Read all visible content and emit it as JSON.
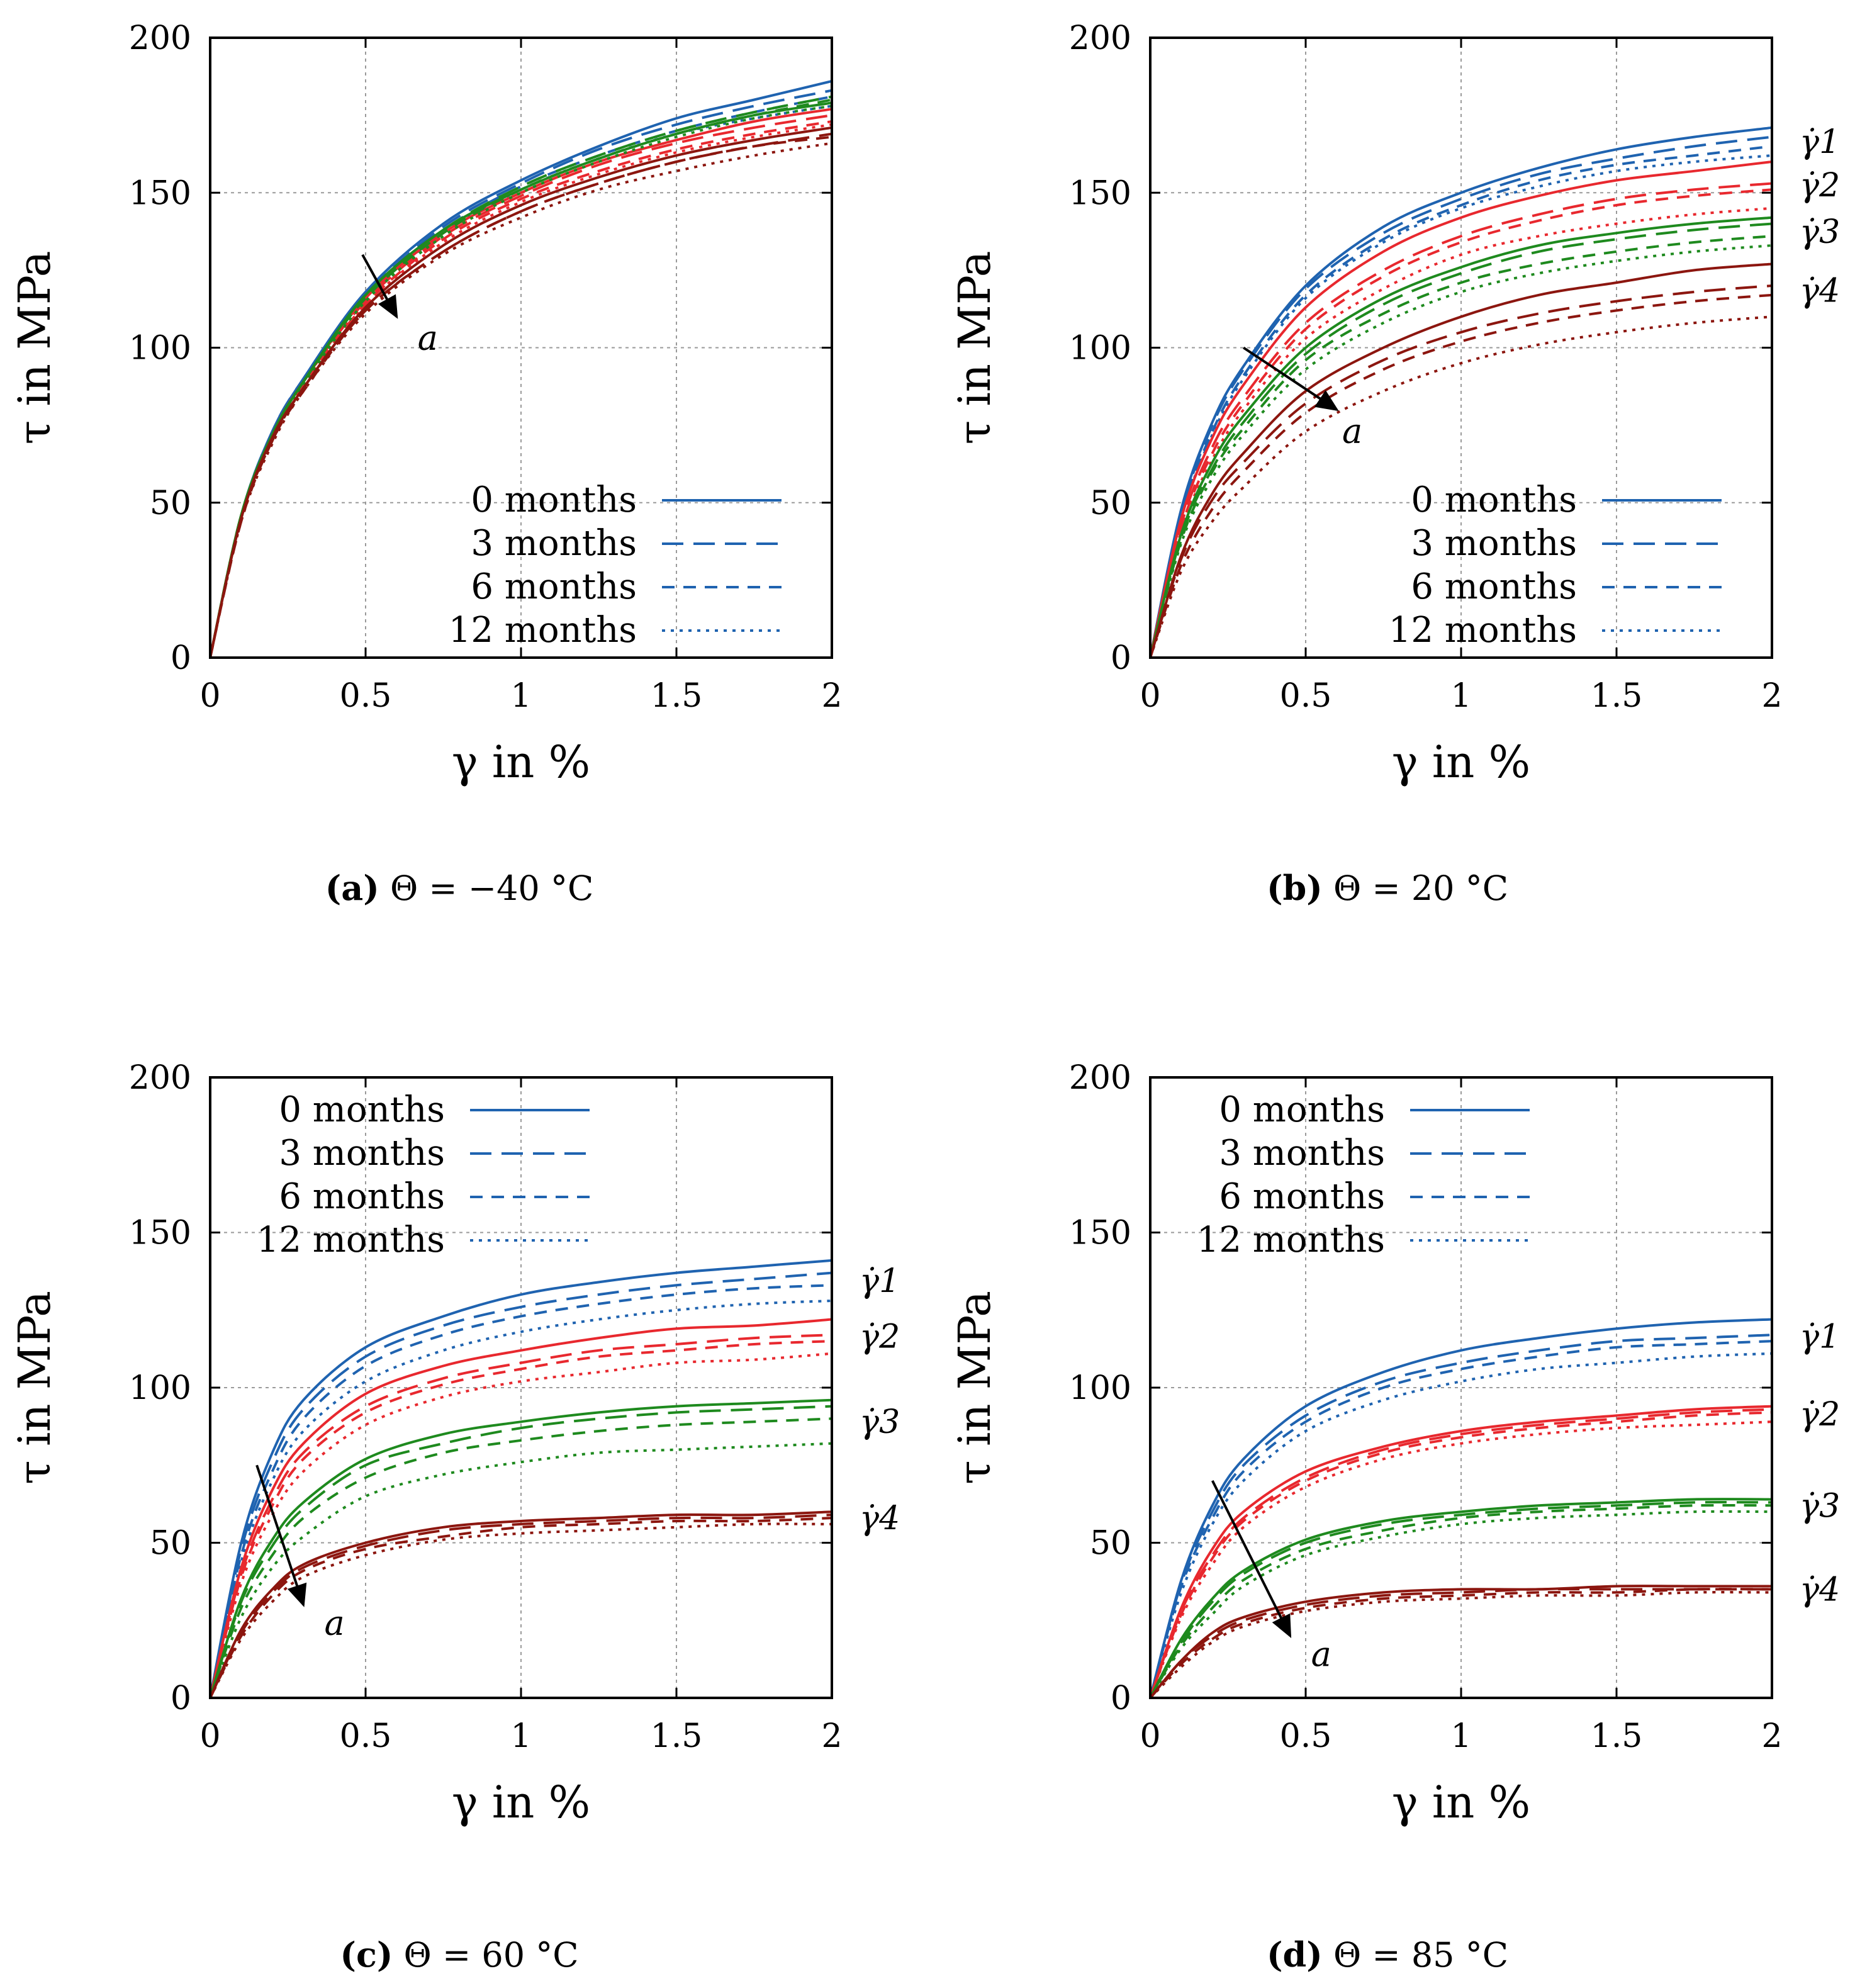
{
  "figure": {
    "colors": {
      "rate_1": "#1f63b0",
      "rate_2": "#e8282e",
      "rate_3": "#1e8a1e",
      "rate_4": "#8c160f"
    },
    "line_styles": {
      "0 months": "solid",
      "3 months": "long-dash",
      "6 months": "dash",
      "12 months": "dot"
    }
  },
  "chart_data": [
    {
      "type": "line",
      "id": "a",
      "caption_letter": "(a)",
      "caption_text": " Θ = −40 °C",
      "xlabel": "γ in %",
      "ylabel": "τ in MPa",
      "xlim": [
        0,
        2
      ],
      "ylim": [
        0,
        200
      ],
      "xticks": [
        "0",
        "0.5",
        "1",
        "1.5",
        "2"
      ],
      "yticks": [
        "0",
        "50",
        "100",
        "150",
        "200"
      ],
      "grid": true,
      "legend_position": "bottom-right",
      "legend": [
        "0 months",
        "3 months",
        "6 months",
        "12 months"
      ],
      "annotation": "a",
      "rate_labels": [],
      "x": [
        0,
        0.1,
        0.2,
        0.3,
        0.5,
        0.75,
        1.0,
        1.25,
        1.5,
        1.75,
        2.0
      ],
      "series": [
        {
          "rate": 1,
          "ages": [
            [
              0,
              46,
              73,
              90,
              118,
              140,
              154,
              165,
              174,
              180,
              186
            ],
            [
              0,
              46,
              73,
              90,
              117,
              139,
              153,
              164,
              172,
              178,
              183
            ],
            [
              0,
              46,
              72,
              89,
              117,
              138,
              152,
              162,
              170,
              176,
              181
            ],
            [
              0,
              45,
              72,
              89,
              116,
              137,
              151,
              161,
              169,
              174,
              178
            ]
          ]
        },
        {
          "rate": 2,
          "ages": [
            [
              0,
              46,
              72,
              89,
              116,
              137,
              150,
              160,
              167,
              173,
              177
            ],
            [
              0,
              46,
              72,
              89,
              115,
              136,
              149,
              159,
              166,
              171,
              175
            ],
            [
              0,
              45,
              71,
              88,
              114,
              135,
              148,
              157,
              164,
              169,
              173
            ],
            [
              0,
              45,
              71,
              88,
              114,
              134,
              147,
              156,
              163,
              168,
              172
            ]
          ]
        },
        {
          "rate": 3,
          "ages": [
            [
              0,
              46,
              72,
              89,
              117,
              138,
              151,
              161,
              169,
              175,
              179
            ],
            [
              0,
              46,
              72,
              89,
              117,
              138,
              152,
              162,
              170,
              176,
              181
            ],
            [
              0,
              46,
              72,
              89,
              116,
              137,
              151,
              161,
              169,
              175,
              180
            ],
            [
              0,
              45,
              71,
              88,
              115,
              136,
              150,
              160,
              168,
              174,
              178
            ]
          ]
        },
        {
          "rate": 4,
          "ages": [
            [
              0,
              45,
              71,
              87,
              113,
              133,
              146,
              155,
              162,
              167,
              171
            ],
            [
              0,
              45,
              70,
              87,
              112,
              131,
              144,
              153,
              160,
              165,
              169
            ],
            [
              0,
              44,
              70,
              86,
              112,
              131,
              144,
              153,
              160,
              165,
              168
            ],
            [
              0,
              44,
              69,
              86,
              111,
              130,
              142,
              151,
              157,
              162,
              166
            ]
          ]
        }
      ]
    },
    {
      "type": "line",
      "id": "b",
      "caption_letter": "(b)",
      "caption_text": " Θ = 20 °C",
      "xlabel": "γ in %",
      "ylabel": "τ in MPa",
      "xlim": [
        0,
        2
      ],
      "ylim": [
        0,
        200
      ],
      "xticks": [
        "0",
        "0.5",
        "1",
        "1.5",
        "2"
      ],
      "yticks": [
        "0",
        "50",
        "100",
        "150",
        "200"
      ],
      "grid": true,
      "legend_position": "bottom-right",
      "legend": [
        "0 months",
        "3 months",
        "6 months",
        "12 months"
      ],
      "annotation": "a",
      "rate_labels": [
        "γ̇1",
        "γ̇2",
        "γ̇3",
        "γ̇4"
      ],
      "x": [
        0,
        0.1,
        0.2,
        0.3,
        0.5,
        0.75,
        1.0,
        1.25,
        1.5,
        1.75,
        2.0
      ],
      "series": [
        {
          "rate": 1,
          "ages": [
            [
              0,
              48,
              76,
              94,
              120,
              139,
              150,
              158,
              164,
              168,
              171
            ],
            [
              0,
              47,
              75,
              93,
              119,
              137,
              148,
              156,
              161,
              165,
              168
            ],
            [
              0,
              46,
              73,
              91,
              117,
              135,
              146,
              154,
              159,
              162,
              165
            ],
            [
              0,
              45,
              72,
              90,
              116,
              134,
              145,
              152,
              157,
              160,
              162
            ]
          ]
        },
        {
          "rate": 2,
          "ages": [
            [
              0,
              45,
              71,
              88,
              113,
              131,
              142,
              149,
              154,
              157,
              160
            ],
            [
              0,
              43,
              68,
              84,
              108,
              125,
              136,
              143,
              148,
              151,
              153
            ],
            [
              0,
              42,
              66,
              82,
              106,
              123,
              134,
              141,
              146,
              149,
              151
            ],
            [
              0,
              41,
              64,
              80,
              103,
              119,
              130,
              136,
              140,
              143,
              145
            ]
          ]
        },
        {
          "rate": 3,
          "ages": [
            [
              0,
              40,
              63,
              78,
              100,
              116,
              126,
              133,
              137,
              140,
              142
            ],
            [
              0,
              39,
              61,
              76,
              98,
              114,
              124,
              131,
              135,
              138,
              140
            ],
            [
              0,
              38,
              60,
              74,
              96,
              111,
              121,
              127,
              131,
              134,
              136
            ],
            [
              0,
              37,
              58,
              72,
              93,
              108,
              118,
              124,
              128,
              131,
              133
            ]
          ]
        },
        {
          "rate": 4,
          "ages": [
            [
              0,
              33,
              53,
              66,
              86,
              100,
              110,
              117,
              121,
              125,
              127
            ],
            [
              0,
              32,
              51,
              63,
              82,
              96,
              105,
              111,
              115,
              118,
              120
            ],
            [
              0,
              30,
              48,
              60,
              79,
              93,
              102,
              108,
              112,
              115,
              117
            ],
            [
              0,
              28,
              44,
              55,
              73,
              86,
              95,
              101,
              105,
              108,
              110
            ]
          ]
        }
      ]
    },
    {
      "type": "line",
      "id": "c",
      "caption_letter": "(c)",
      "caption_text": " Θ = 60 °C",
      "xlabel": "γ in %",
      "ylabel": "τ in MPa",
      "xlim": [
        0,
        2
      ],
      "ylim": [
        0,
        200
      ],
      "xticks": [
        "0",
        "0.5",
        "1",
        "1.5",
        "2"
      ],
      "yticks": [
        "0",
        "50",
        "100",
        "150",
        "200"
      ],
      "grid": true,
      "legend_position": "top-right",
      "legend": [
        "0 months",
        "3 months",
        "6 months",
        "12 months"
      ],
      "annotation": "a",
      "rate_labels": [
        "γ̇1",
        "γ̇2",
        "γ̇3",
        "γ̇4"
      ],
      "x": [
        0,
        0.1,
        0.2,
        0.3,
        0.5,
        0.75,
        1.0,
        1.25,
        1.5,
        1.75,
        2.0
      ],
      "series": [
        {
          "rate": 1,
          "ages": [
            [
              0,
              50,
              79,
              96,
              113,
              123,
              130,
              134,
              137,
              139,
              141
            ],
            [
              0,
              48,
              76,
              93,
              110,
              120,
              126,
              130,
              133,
              135,
              137
            ],
            [
              0,
              46,
              73,
              90,
              107,
              117,
              123,
              127,
              130,
              132,
              133
            ],
            [
              0,
              44,
              70,
              86,
              102,
              112,
              118,
              122,
              125,
              127,
              128
            ]
          ]
        },
        {
          "rate": 2,
          "ages": [
            [
              0,
              42,
              67,
              82,
              98,
              107,
              112,
              116,
              119,
              120,
              122
            ],
            [
              0,
              40,
              64,
              79,
              94,
              103,
              108,
              112,
              114,
              116,
              117
            ],
            [
              0,
              39,
              62,
              77,
              92,
              101,
              106,
              110,
              112,
              114,
              115
            ],
            [
              0,
              37,
              59,
              73,
              88,
              97,
              102,
              105,
              108,
              109,
              111
            ]
          ]
        },
        {
          "rate": 3,
          "ages": [
            [
              0,
              32,
              51,
              63,
              77,
              85,
              89,
              92,
              94,
              95,
              96
            ],
            [
              0,
              31,
              49,
              61,
              75,
              82,
              87,
              90,
              92,
              93,
              94
            ],
            [
              0,
              29,
              46,
              58,
              71,
              79,
              83,
              86,
              88,
              89,
              90
            ],
            [
              0,
              26,
              42,
              52,
              65,
              72,
              76,
              79,
              80,
              81,
              82
            ]
          ]
        },
        {
          "rate": 4,
          "ages": [
            [
              0,
              22,
              35,
              43,
              50,
              55,
              57,
              58,
              59,
              59,
              60
            ],
            [
              0,
              21,
              34,
              42,
              49,
              54,
              56,
              57,
              58,
              58,
              59
            ],
            [
              0,
              20,
              33,
              41,
              48,
              52,
              55,
              56,
              57,
              57,
              58
            ],
            [
              0,
              19,
              31,
              39,
              46,
              51,
              53,
              54,
              55,
              56,
              56
            ]
          ]
        }
      ]
    },
    {
      "type": "line",
      "id": "d",
      "caption_letter": "(d)",
      "caption_text": " Θ = 85 °C",
      "xlabel": "γ in %",
      "ylabel": "τ in MPa",
      "xlim": [
        0,
        2
      ],
      "ylim": [
        0,
        200
      ],
      "xticks": [
        "0",
        "0.5",
        "1",
        "1.5",
        "2"
      ],
      "yticks": [
        "0",
        "50",
        "100",
        "150",
        "200"
      ],
      "grid": true,
      "legend_position": "top-right",
      "legend": [
        "0 months",
        "3 months",
        "6 months",
        "12 months"
      ],
      "annotation": "a",
      "rate_labels": [
        "γ̇1",
        "γ̇2",
        "γ̇3",
        "γ̇4"
      ],
      "x": [
        0,
        0.1,
        0.2,
        0.3,
        0.5,
        0.75,
        1.0,
        1.25,
        1.5,
        1.75,
        2.0
      ],
      "series": [
        {
          "rate": 1,
          "ages": [
            [
              0,
              38,
              62,
              77,
              94,
              105,
              112,
              116,
              119,
              121,
              122
            ],
            [
              0,
              37,
              60,
              75,
              91,
              102,
              108,
              112,
              115,
              116,
              117
            ],
            [
              0,
              36,
              58,
              73,
              89,
              100,
              106,
              110,
              113,
              114,
              115
            ],
            [
              0,
              34,
              56,
              70,
              86,
              96,
              102,
              106,
              108,
              110,
              111
            ]
          ]
        },
        {
          "rate": 2,
          "ages": [
            [
              0,
              29,
              48,
              60,
              73,
              81,
              86,
              89,
              91,
              93,
              94
            ],
            [
              0,
              28,
              46,
              58,
              71,
              80,
              85,
              88,
              90,
              92,
              93
            ],
            [
              0,
              27,
              45,
              57,
              70,
              79,
              84,
              87,
              89,
              91,
              92
            ],
            [
              0,
              26,
              43,
              55,
              68,
              77,
              82,
              85,
              87,
              88,
              89
            ]
          ]
        },
        {
          "rate": 3,
          "ages": [
            [
              0,
              19,
              32,
              41,
              51,
              57,
              60,
              62,
              63,
              64,
              64
            ],
            [
              0,
              18,
              31,
              40,
              50,
              56,
              59,
              61,
              62,
              63,
              63
            ],
            [
              0,
              17,
              29,
              38,
              48,
              54,
              58,
              60,
              61,
              62,
              62
            ],
            [
              0,
              16,
              27,
              36,
              46,
              52,
              56,
              58,
              59,
              60,
              60
            ]
          ]
        },
        {
          "rate": 4,
          "ages": [
            [
              0,
              12,
              21,
              26,
              31,
              34,
              35,
              35,
              36,
              36,
              36
            ],
            [
              0,
              12,
              20,
              25,
              30,
              33,
              34,
              35,
              35,
              35,
              35
            ],
            [
              0,
              11,
              19,
              24,
              29,
              32,
              33,
              34,
              34,
              35,
              35
            ],
            [
              0,
              10,
              18,
              23,
              28,
              31,
              32,
              33,
              33,
              34,
              34
            ]
          ]
        }
      ]
    }
  ]
}
